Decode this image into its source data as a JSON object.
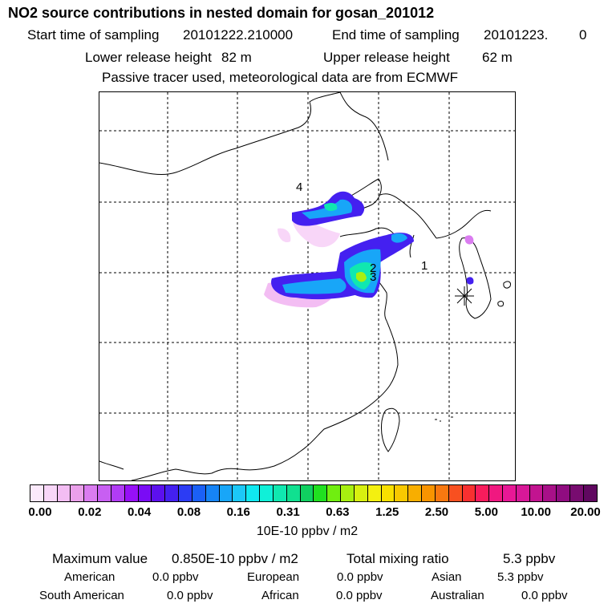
{
  "header": {
    "title": "NO2 source contributions in nested domain for gosan_201012",
    "start_label": "Start time of sampling",
    "start_value": "20101222.210000",
    "end_label": "End time of sampling",
    "end_value": "20101223.",
    "end_value_suffix": "0",
    "lower_label": "Lower release height",
    "lower_value": "82 m",
    "upper_label": "Upper release height",
    "upper_value": "62 m",
    "note": "Passive tracer used, meteorological data are from ECMWF"
  },
  "map": {
    "source_labels": [
      "1",
      "2",
      "3",
      "4"
    ],
    "receptor_marker": "asterisk-icon"
  },
  "colorbar": {
    "colors": [
      "#fbe9fb",
      "#f8d6f8",
      "#f3bdf3",
      "#eaa0ea",
      "#da7cf0",
      "#c85ff2",
      "#b13cf5",
      "#9710f7",
      "#7a0cf5",
      "#5c10ee",
      "#4420f0",
      "#2c3cf4",
      "#1b60f6",
      "#1684f6",
      "#18a6f8",
      "#1cc8f8",
      "#10e8f0",
      "#10f0d8",
      "#10e8b0",
      "#10e090",
      "#10d060",
      "#20e020",
      "#70ee10",
      "#a8f010",
      "#d8f010",
      "#f4f010",
      "#f8e000",
      "#f8c800",
      "#f8ae00",
      "#f89400",
      "#f87810",
      "#f85020",
      "#f83030",
      "#f81c5c",
      "#f01880",
      "#e81896",
      "#d81898",
      "#c21490",
      "#a81088",
      "#900c80",
      "#780c70",
      "#600860"
    ],
    "tick_labels": [
      "0.00",
      "0.02",
      "0.04",
      "0.08",
      "0.16",
      "0.31",
      "0.63",
      "1.25",
      "2.50",
      "5.00",
      "10.00",
      "20.00"
    ],
    "units": "10E-10 ppbv / m2"
  },
  "summary": {
    "max_label": "Maximum value",
    "max_value": "0.850E-10 ppbv / m2",
    "total_label": "Total mixing ratio",
    "total_value": "5.3 ppbv"
  },
  "regions": [
    {
      "name": "American",
      "value": "0.0 ppbv"
    },
    {
      "name": "European",
      "value": "0.0 ppbv"
    },
    {
      "name": "Asian",
      "value": "5.3 ppbv"
    },
    {
      "name": "South American",
      "value": "0.0 ppbv"
    },
    {
      "name": "African",
      "value": "0.0 ppbv"
    },
    {
      "name": "Australian",
      "value": "0.0 ppbv"
    }
  ]
}
